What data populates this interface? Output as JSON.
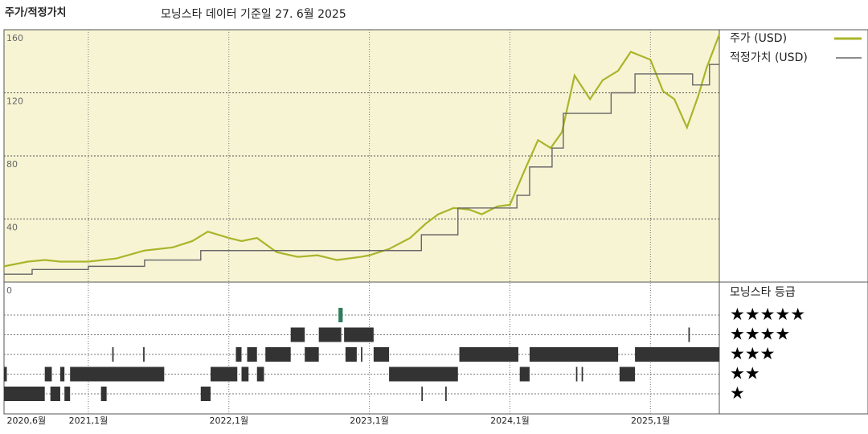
{
  "chart_data": {
    "type": "line",
    "title": "주가/적정가치",
    "subtitle": "모닝스타 데이터 기준일 27. 6월 2025",
    "xlim": [
      2020.4,
      2025.49
    ],
    "xticks": [
      {
        "value": 2020.42,
        "label": "2020,6월"
      },
      {
        "value": 2021,
        "label": "2021,1월"
      },
      {
        "value": 2022,
        "label": "2022,1월"
      },
      {
        "value": 2023,
        "label": "2023,1월"
      },
      {
        "value": 2024,
        "label": "2024,1월"
      },
      {
        "value": 2025,
        "label": "2025,1월"
      }
    ],
    "ylim": [
      0,
      160
    ],
    "yticks": [
      0,
      40,
      80,
      120,
      160
    ],
    "grid": true,
    "series": [
      {
        "name": "주가 (USD)",
        "color": "#a9b52a",
        "x": [
          2020.4,
          2020.57,
          2020.69,
          2020.8,
          2021.0,
          2021.2,
          2021.4,
          2021.6,
          2021.74,
          2021.85,
          2022.0,
          2022.09,
          2022.2,
          2022.34,
          2022.49,
          2022.63,
          2022.77,
          2022.94,
          2023.0,
          2023.14,
          2023.29,
          2023.4,
          2023.49,
          2023.6,
          2023.71,
          2023.8,
          2023.91,
          2024.0,
          2024.11,
          2024.2,
          2024.29,
          2024.37,
          2024.46,
          2024.57,
          2024.66,
          2024.77,
          2024.86,
          2025.0,
          2025.09,
          2025.17,
          2025.26,
          2025.34,
          2025.4,
          2025.49
        ],
        "values": [
          10,
          13,
          14,
          13,
          13,
          15,
          20,
          22,
          26,
          32,
          28,
          26,
          28,
          19,
          16,
          17,
          14,
          16,
          17,
          21,
          28,
          37,
          43,
          47,
          46,
          43,
          48,
          49,
          72,
          90,
          85,
          95,
          131,
          116,
          128,
          134,
          146,
          141,
          121,
          116,
          98,
          118,
          136,
          157
        ]
      },
      {
        "name": "적정가치 (USD)",
        "color": "#666666",
        "x": [
          2020.4,
          2020.6,
          2020.6,
          2021.0,
          2021.0,
          2021.4,
          2021.4,
          2021.8,
          2021.8,
          2023.37,
          2023.37,
          2023.63,
          2023.63,
          2024.05,
          2024.05,
          2024.14,
          2024.14,
          2024.3,
          2024.3,
          2024.38,
          2024.38,
          2024.72,
          2024.72,
          2024.89,
          2024.89,
          2025.3,
          2025.3,
          2025.42,
          2025.42,
          2025.49
        ],
        "values": [
          5,
          5,
          8,
          8,
          10,
          10,
          14,
          14,
          20,
          20,
          30,
          30,
          47,
          47,
          55,
          55,
          73,
          73,
          85,
          85,
          107,
          107,
          120,
          120,
          132,
          132,
          125,
          125,
          138,
          138
        ]
      }
    ],
    "rating_title": "모닝스타 등급",
    "ratings": [
      {
        "label": "★★★★★",
        "color": "#2e7d5b",
        "periods": [
          [
            2022.78,
            2022.81
          ]
        ]
      },
      {
        "label": "★★★★",
        "color": "#333333",
        "periods": [
          [
            2022.44,
            2022.54
          ],
          [
            2022.64,
            2022.8
          ],
          [
            2022.82,
            2023.03
          ],
          [
            2025.27,
            2025.28
          ]
        ]
      },
      {
        "label": "★★★",
        "color": "#333333",
        "periods": [
          [
            2021.17,
            2021.18
          ],
          [
            2021.39,
            2021.4
          ],
          [
            2022.05,
            2022.09
          ],
          [
            2022.13,
            2022.2
          ],
          [
            2022.26,
            2022.44
          ],
          [
            2022.54,
            2022.64
          ],
          [
            2022.83,
            2022.91
          ],
          [
            2022.94,
            2022.95
          ],
          [
            2023.03,
            2023.14
          ],
          [
            2023.64,
            2024.06
          ],
          [
            2024.14,
            2024.77
          ],
          [
            2024.89,
            2025.49
          ]
        ]
      },
      {
        "label": "★★",
        "color": "#333333",
        "periods": [
          [
            2020.4,
            2020.42
          ],
          [
            2020.69,
            2020.74
          ],
          [
            2020.8,
            2020.83
          ],
          [
            2020.87,
            2021.54
          ],
          [
            2021.87,
            2022.06
          ],
          [
            2022.09,
            2022.14
          ],
          [
            2022.2,
            2022.25
          ],
          [
            2023.14,
            2023.63
          ],
          [
            2024.07,
            2024.14
          ],
          [
            2024.47,
            2024.48
          ],
          [
            2024.51,
            2024.52
          ],
          [
            2024.78,
            2024.89
          ]
        ]
      },
      {
        "label": "★",
        "color": "#333333",
        "periods": [
          [
            2020.4,
            2020.69
          ],
          [
            2020.73,
            2020.8
          ],
          [
            2020.83,
            2020.87
          ],
          [
            2021.09,
            2021.13
          ],
          [
            2021.8,
            2021.87
          ],
          [
            2023.37,
            2023.38
          ],
          [
            2023.54,
            2023.55
          ]
        ]
      }
    ]
  }
}
